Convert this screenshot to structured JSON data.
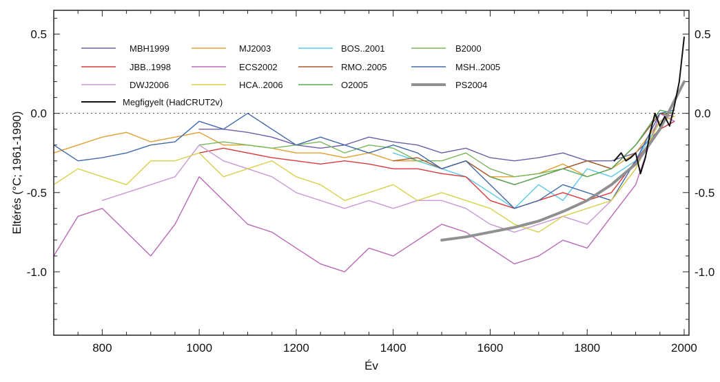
{
  "chart_data": {
    "type": "line",
    "xlabel": "Év",
    "ylabel": "Eltérés (°C; 1961-1990)",
    "xlim": [
      700,
      2010
    ],
    "ylim": [
      -1.4,
      0.65
    ],
    "x_ticks": [
      800,
      1000,
      1200,
      1400,
      1600,
      1800,
      2000
    ],
    "x_tick_labels": [
      "800",
      "1000",
      "1200",
      "1400",
      "1600",
      "1800",
      "2000"
    ],
    "y_ticks": [
      0.5,
      0.0,
      -0.5,
      -1.0
    ],
    "y_tick_labels": [
      "0.5",
      "0.0",
      "-0.5",
      "-1.0"
    ],
    "zero_line": "dotted",
    "grid": false,
    "legend_position": "top-left",
    "series": [
      {
        "name": "MBH1999",
        "color": "#6f5aa8",
        "x": [
          1000,
          1050,
          1100,
          1150,
          1200,
          1250,
          1300,
          1350,
          1400,
          1450,
          1500,
          1550,
          1600,
          1650,
          1700,
          1750,
          1800,
          1850,
          1900,
          1950,
          1980
        ],
        "y": [
          -0.1,
          -0.1,
          -0.12,
          -0.15,
          -0.2,
          -0.22,
          -0.2,
          -0.15,
          -0.18,
          -0.2,
          -0.25,
          -0.22,
          -0.28,
          -0.3,
          -0.28,
          -0.25,
          -0.3,
          -0.3,
          -0.25,
          -0.1,
          -0.05
        ]
      },
      {
        "name": "MJ2003",
        "color": "#e0a030",
        "x": [
          700,
          750,
          800,
          850,
          900,
          950,
          1000,
          1050,
          1100,
          1150,
          1200,
          1250,
          1300,
          1350,
          1400,
          1450,
          1500,
          1550,
          1600,
          1650,
          1700,
          1750,
          1800,
          1850,
          1900,
          1950,
          1980
        ],
        "y": [
          -0.25,
          -0.2,
          -0.15,
          -0.12,
          -0.18,
          -0.15,
          -0.12,
          -0.2,
          -0.2,
          -0.22,
          -0.25,
          -0.25,
          -0.28,
          -0.25,
          -0.3,
          -0.3,
          -0.35,
          -0.3,
          -0.4,
          -0.4,
          -0.38,
          -0.32,
          -0.4,
          -0.35,
          -0.25,
          -0.05,
          0.0
        ]
      },
      {
        "name": "BOS..2001",
        "color": "#58c8e8",
        "x": [
          1400,
          1450,
          1500,
          1550,
          1600,
          1650,
          1700,
          1750,
          1800,
          1850,
          1900,
          1950,
          1980
        ],
        "y": [
          -0.25,
          -0.3,
          -0.35,
          -0.4,
          -0.5,
          -0.6,
          -0.45,
          -0.55,
          -0.35,
          -0.4,
          -0.3,
          -0.05,
          0.0
        ]
      },
      {
        "name": "B2000",
        "color": "#78b858",
        "x": [
          1000,
          1050,
          1100,
          1150,
          1200,
          1250,
          1300,
          1350,
          1400,
          1450,
          1500,
          1550,
          1600,
          1650,
          1700,
          1750,
          1800,
          1850,
          1900,
          1950,
          1980
        ],
        "y": [
          -0.2,
          -0.18,
          -0.2,
          -0.22,
          -0.2,
          -0.18,
          -0.25,
          -0.2,
          -0.22,
          -0.3,
          -0.3,
          -0.25,
          -0.35,
          -0.4,
          -0.38,
          -0.35,
          -0.3,
          -0.35,
          -0.2,
          0.0,
          0.0
        ]
      },
      {
        "name": "JBB..1998",
        "color": "#d83838",
        "x": [
          1000,
          1050,
          1100,
          1150,
          1200,
          1250,
          1300,
          1350,
          1400,
          1450,
          1500,
          1550,
          1600,
          1650,
          1700,
          1750,
          1800,
          1850,
          1900,
          1950,
          1980
        ],
        "y": [
          -0.25,
          -0.22,
          -0.25,
          -0.28,
          -0.3,
          -0.32,
          -0.3,
          -0.32,
          -0.35,
          -0.35,
          -0.38,
          -0.4,
          -0.55,
          -0.6,
          -0.55,
          -0.5,
          -0.55,
          -0.5,
          -0.3,
          -0.1,
          -0.05
        ]
      },
      {
        "name": "ECS2002",
        "color": "#b868b8",
        "x": [
          700,
          750,
          800,
          850,
          900,
          950,
          1000,
          1050,
          1100,
          1150,
          1200,
          1250,
          1300,
          1350,
          1400,
          1450,
          1500,
          1550,
          1600,
          1650,
          1700,
          1750,
          1800,
          1850,
          1900,
          1950,
          1980
        ],
        "y": [
          -0.9,
          -0.65,
          -0.6,
          -0.75,
          -0.9,
          -0.7,
          -0.4,
          -0.55,
          -0.7,
          -0.75,
          -0.85,
          -0.95,
          -1.0,
          -0.85,
          -0.9,
          -0.8,
          -0.7,
          -0.75,
          -0.85,
          -0.95,
          -0.9,
          -0.8,
          -0.85,
          -0.65,
          -0.45,
          0.0,
          -0.05
        ]
      },
      {
        "name": "RMO..2005",
        "color": "#a85830",
        "x": [
          1400,
          1450,
          1500,
          1550,
          1600,
          1650,
          1700,
          1750,
          1800,
          1850,
          1900,
          1950,
          1980
        ],
        "y": [
          -0.3,
          -0.28,
          -0.35,
          -0.3,
          -0.4,
          -0.45,
          -0.4,
          -0.35,
          -0.3,
          -0.35,
          -0.2,
          0.0,
          -0.02
        ]
      },
      {
        "name": "MSH..2005",
        "color": "#4068a8",
        "x": [
          700,
          750,
          800,
          850,
          900,
          950,
          1000,
          1050,
          1100,
          1150,
          1200,
          1250,
          1300,
          1350,
          1400,
          1450,
          1500,
          1550,
          1600,
          1650,
          1700,
          1750,
          1800,
          1850,
          1900,
          1950,
          1980
        ],
        "y": [
          -0.2,
          -0.3,
          -0.28,
          -0.25,
          -0.2,
          -0.18,
          -0.05,
          -0.1,
          0.0,
          -0.1,
          -0.2,
          -0.15,
          -0.2,
          -0.25,
          -0.2,
          -0.25,
          -0.35,
          -0.3,
          -0.45,
          -0.6,
          -0.55,
          -0.45,
          -0.5,
          -0.55,
          -0.3,
          0.0,
          0.02
        ]
      },
      {
        "name": "DWJ2006",
        "color": "#c898d8",
        "x": [
          800,
          850,
          900,
          950,
          1000,
          1050,
          1100,
          1150,
          1200,
          1250,
          1300,
          1350,
          1400,
          1450,
          1500,
          1550,
          1600,
          1650,
          1700,
          1750,
          1800,
          1850,
          1900,
          1950,
          1980
        ],
        "y": [
          -0.55,
          -0.5,
          -0.45,
          -0.4,
          -0.2,
          -0.3,
          -0.35,
          -0.4,
          -0.5,
          -0.55,
          -0.6,
          -0.55,
          -0.6,
          -0.55,
          -0.55,
          -0.6,
          -0.7,
          -0.75,
          -0.7,
          -0.65,
          -0.7,
          -0.55,
          -0.35,
          -0.05,
          0.0
        ]
      },
      {
        "name": "HCA..2006",
        "color": "#d8d048",
        "x": [
          700,
          750,
          800,
          850,
          900,
          950,
          1000,
          1050,
          1100,
          1150,
          1200,
          1250,
          1300,
          1350,
          1400,
          1450,
          1500,
          1550,
          1600,
          1650,
          1700,
          1750,
          1800,
          1850,
          1900,
          1950,
          1980
        ],
        "y": [
          -0.45,
          -0.35,
          -0.4,
          -0.45,
          -0.3,
          -0.3,
          -0.25,
          -0.4,
          -0.35,
          -0.3,
          -0.4,
          -0.45,
          -0.55,
          -0.5,
          -0.45,
          -0.55,
          -0.5,
          -0.55,
          -0.6,
          -0.7,
          -0.75,
          -0.65,
          -0.6,
          -0.55,
          -0.35,
          -0.05,
          -0.02
        ]
      },
      {
        "name": "O2005",
        "color": "#58a858",
        "x": [
          1600,
          1650,
          1700,
          1750,
          1800,
          1850,
          1900,
          1950,
          1980
        ],
        "y": [
          -0.4,
          -0.45,
          -0.4,
          -0.35,
          -0.4,
          -0.35,
          -0.2,
          0.02,
          0.0
        ]
      },
      {
        "name": "PS2004",
        "color": "#909090",
        "x": [
          1500,
          1550,
          1600,
          1650,
          1700,
          1750,
          1800,
          1850,
          1900,
          1950,
          2000
        ],
        "y": [
          -0.8,
          -0.78,
          -0.75,
          -0.72,
          -0.68,
          -0.62,
          -0.55,
          -0.45,
          -0.32,
          -0.1,
          0.2
        ]
      },
      {
        "name": "Megfigyelt (HadCRUT2v)",
        "color": "#111111",
        "x": [
          1856,
          1870,
          1880,
          1890,
          1900,
          1910,
          1920,
          1930,
          1940,
          1950,
          1960,
          1970,
          1980,
          1990,
          2000
        ],
        "y": [
          -0.3,
          -0.25,
          -0.3,
          -0.28,
          -0.25,
          -0.38,
          -0.28,
          -0.12,
          0.0,
          -0.08,
          -0.02,
          -0.08,
          0.05,
          0.2,
          0.48
        ]
      }
    ]
  }
}
